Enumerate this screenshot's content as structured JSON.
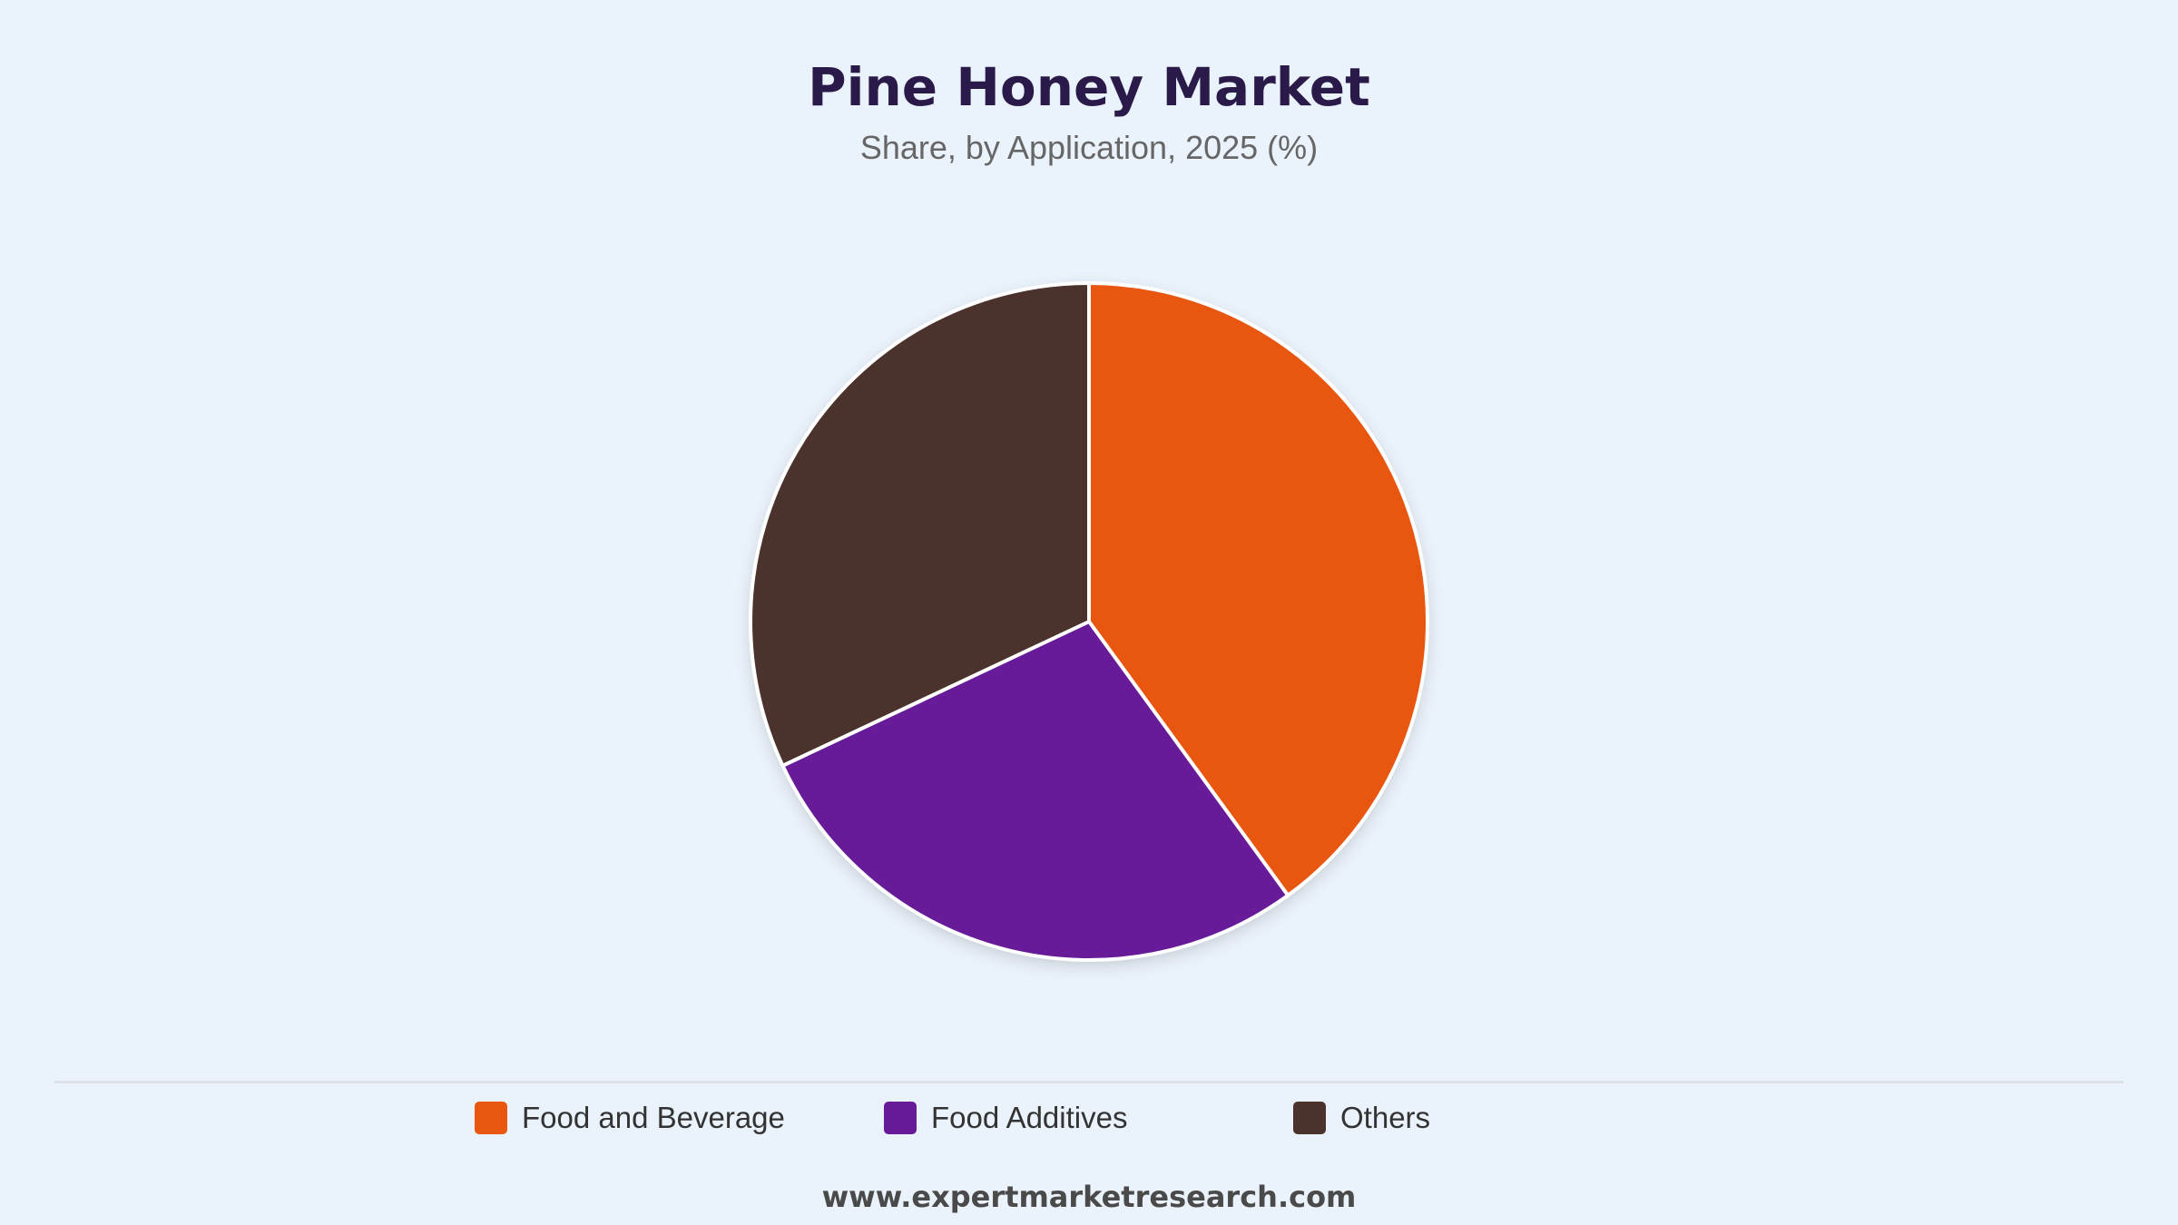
{
  "chart_data": {
    "type": "pie",
    "title": "Pine Honey Market",
    "subtitle": "Share, by Application, 2025 (%)",
    "slices": [
      {
        "label": "Food and Beverage",
        "value": 40,
        "color": "#e8560f"
      },
      {
        "label": "Food Additives",
        "value": 28,
        "color": "#681b98"
      },
      {
        "label": "Others",
        "value": 32,
        "color": "#4b322d"
      }
    ],
    "start_angle": "12 o'clock",
    "direction": "clockwise",
    "legend_position": "bottom"
  },
  "footer": {
    "source": "www.expertmarketresearch.com"
  }
}
